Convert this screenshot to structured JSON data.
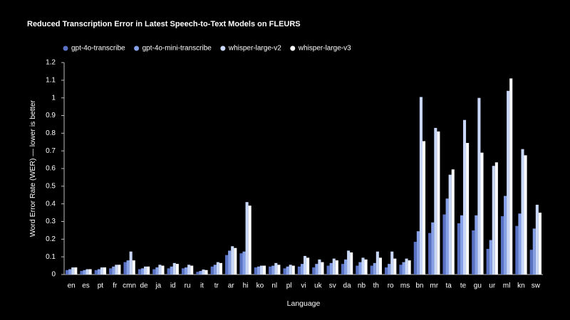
{
  "chart_data": {
    "type": "bar",
    "title": "Reduced Transcription Error in Latest Speech-to-Text Models on FLEURS",
    "x_label": "Language",
    "y_label": "Word Error Rate (WER) — lower is better",
    "categories": [
      "en",
      "es",
      "pt",
      "fr",
      "cmn",
      "de",
      "ja",
      "id",
      "ru",
      "it",
      "tr",
      "ar",
      "hi",
      "ko",
      "nl",
      "pl",
      "vi",
      "uk",
      "sv",
      "da",
      "nb",
      "th",
      "ro",
      "ms",
      "bn",
      "mr",
      "ta",
      "te",
      "gu",
      "ur",
      "ml",
      "kn",
      "sw"
    ],
    "series": [
      {
        "name": "gpt-4o-transcribe",
        "color": "#5a72c4",
        "values": [
          0.025,
          0.02,
          0.025,
          0.035,
          0.07,
          0.03,
          0.03,
          0.035,
          0.035,
          0.015,
          0.045,
          0.11,
          0.12,
          0.04,
          0.045,
          0.035,
          0.045,
          0.04,
          0.05,
          0.06,
          0.05,
          0.05,
          0.04,
          0.055,
          0.185,
          0.235,
          0.34,
          0.29,
          0.25,
          0.145,
          0.33,
          0.275,
          0.14
        ]
      },
      {
        "name": "gpt-4o-mini-transcribe",
        "color": "#86a0e8",
        "values": [
          0.03,
          0.025,
          0.03,
          0.045,
          0.08,
          0.035,
          0.04,
          0.045,
          0.04,
          0.02,
          0.055,
          0.135,
          0.13,
          0.045,
          0.05,
          0.045,
          0.06,
          0.06,
          0.065,
          0.085,
          0.07,
          0.065,
          0.06,
          0.07,
          0.245,
          0.295,
          0.43,
          0.335,
          0.335,
          0.195,
          0.445,
          0.345,
          0.26
        ]
      },
      {
        "name": "whisper-large-v2",
        "color": "#c8d6f8",
        "values": [
          0.04,
          0.03,
          0.04,
          0.055,
          0.13,
          0.045,
          0.055,
          0.065,
          0.055,
          0.028,
          0.07,
          0.16,
          0.41,
          0.05,
          0.065,
          0.055,
          0.105,
          0.085,
          0.09,
          0.135,
          0.095,
          0.13,
          0.13,
          0.09,
          1.005,
          0.83,
          0.565,
          0.875,
          1.0,
          0.615,
          1.04,
          0.71,
          0.395
        ]
      },
      {
        "name": "whisper-large-v3",
        "color": "#ffffff",
        "values": [
          0.04,
          0.03,
          0.04,
          0.055,
          0.08,
          0.045,
          0.05,
          0.06,
          0.05,
          0.025,
          0.065,
          0.15,
          0.39,
          0.05,
          0.055,
          0.05,
          0.095,
          0.07,
          0.08,
          0.125,
          0.085,
          0.095,
          0.09,
          0.08,
          0.755,
          0.81,
          0.595,
          0.745,
          0.69,
          0.635,
          1.11,
          0.675,
          0.35
        ]
      }
    ],
    "ylim": [
      0,
      1.2
    ],
    "yticks": [
      0,
      0.1,
      0.2,
      0.3,
      0.4,
      0.5,
      0.6,
      0.7,
      0.8,
      0.9,
      1,
      1.1,
      1.2
    ],
    "legend": "top-left"
  }
}
